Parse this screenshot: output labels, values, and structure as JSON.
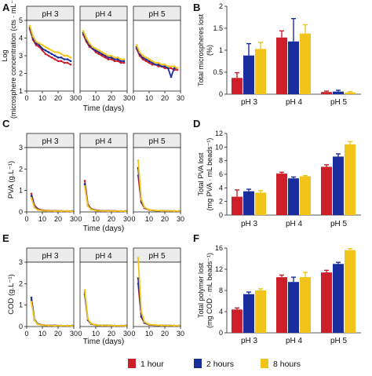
{
  "colors": {
    "1 hour": "#cc1f2a",
    "2 hours": "#1a2d9c",
    "8 hours": "#f2c41a"
  },
  "legend": {
    "items": [
      {
        "name": "1 hour",
        "color": "#cc1f2a"
      },
      {
        "name": "2 hours",
        "color": "#1a2d9c"
      },
      {
        "name": "8 hours",
        "color": "#f2c41a"
      }
    ],
    "placement": "bottom"
  },
  "chart_data": [
    {
      "panel": "A",
      "type": "line",
      "ylabel": "Log(microsphere concentration (cts · mL⁻¹))",
      "xlabel": "Time (days)",
      "facets": [
        "pH  3",
        "pH  4",
        "pH  5"
      ],
      "xlim": [
        0,
        30
      ],
      "ylim": [
        1,
        5
      ],
      "xticks": [
        0,
        10,
        20,
        30
      ],
      "yticks": [
        1,
        2,
        3,
        4,
        5
      ],
      "series_by_facet": [
        [
          {
            "name": "1 hour",
            "x": [
              2,
              4,
              6,
              8,
              10,
              12,
              14,
              16,
              18,
              20,
              22,
              24,
              26,
              28
            ],
            "y": [
              4.5,
              3.9,
              3.6,
              3.5,
              3.3,
              3.1,
              3.0,
              2.9,
              2.8,
              2.7,
              2.7,
              2.6,
              2.6,
              2.5
            ]
          },
          {
            "name": "2 hours",
            "x": [
              2,
              4,
              6,
              8,
              10,
              12,
              14,
              16,
              18,
              20,
              22,
              24,
              26,
              28
            ],
            "y": [
              4.6,
              4.0,
              3.7,
              3.6,
              3.4,
              3.3,
              3.2,
              3.1,
              3.0,
              2.9,
              2.9,
              2.8,
              2.8,
              2.7
            ]
          },
          {
            "name": "8 hours",
            "x": [
              2,
              4,
              6,
              8,
              10,
              12,
              14,
              16,
              18,
              20,
              22,
              24,
              26,
              28
            ],
            "y": [
              4.7,
              4.1,
              3.8,
              3.7,
              3.6,
              3.5,
              3.4,
              3.3,
              3.2,
              3.2,
              3.1,
              3.0,
              3.0,
              2.9
            ]
          }
        ],
        [
          {
            "name": "1 hour",
            "x": [
              2,
              4,
              6,
              8,
              10,
              12,
              14,
              16,
              18,
              20,
              22,
              24,
              26,
              28
            ],
            "y": [
              4.2,
              3.8,
              3.5,
              3.4,
              3.2,
              3.1,
              3.0,
              2.9,
              2.8,
              2.8,
              2.7,
              2.7,
              2.6,
              2.6
            ]
          },
          {
            "name": "2 hours",
            "x": [
              2,
              4,
              6,
              8,
              10,
              12,
              14,
              16,
              18,
              20,
              22,
              24,
              26,
              28
            ],
            "y": [
              4.3,
              3.9,
              3.6,
              3.4,
              3.3,
              3.2,
              3.1,
              3.0,
              2.9,
              2.9,
              2.8,
              2.8,
              2.7,
              2.7
            ]
          },
          {
            "name": "8 hours",
            "x": [
              2,
              4,
              6,
              8,
              10,
              12,
              14,
              16,
              18,
              20,
              22,
              24,
              26,
              28
            ],
            "y": [
              4.4,
              4.0,
              3.7,
              3.5,
              3.4,
              3.3,
              3.2,
              3.1,
              3.0,
              3.0,
              2.9,
              2.9,
              2.8,
              2.8
            ]
          }
        ],
        [
          {
            "name": "1 hour",
            "x": [
              2,
              4,
              6,
              8,
              10,
              12,
              14,
              16,
              18,
              20,
              22,
              24,
              26,
              28
            ],
            "y": [
              3.4,
              3.0,
              2.8,
              2.7,
              2.6,
              2.5,
              2.5,
              2.4,
              2.4,
              2.3,
              2.3,
              2.3,
              2.2,
              2.2
            ]
          },
          {
            "name": "2 hours",
            "x": [
              2,
              4,
              6,
              8,
              10,
              12,
              14,
              16,
              18,
              20,
              22,
              24,
              26,
              28
            ],
            "y": [
              3.5,
              3.1,
              2.9,
              2.8,
              2.7,
              2.6,
              2.5,
              2.5,
              2.4,
              2.4,
              2.3,
              1.8,
              2.3,
              2.3
            ]
          },
          {
            "name": "8 hours",
            "x": [
              2,
              4,
              6,
              8,
              10,
              12,
              14,
              16,
              18,
              20,
              22,
              24,
              26,
              28
            ],
            "y": [
              3.6,
              3.2,
              3.0,
              2.9,
              2.8,
              2.7,
              2.6,
              2.6,
              2.5,
              2.5,
              2.4,
              2.4,
              2.4,
              2.3
            ]
          }
        ]
      ]
    },
    {
      "panel": "B",
      "type": "bar",
      "ylabel": "Total microspheres lost (%)",
      "categories": [
        "pH  3",
        "pH  4",
        "pH  5"
      ],
      "ylim": [
        0,
        2
      ],
      "yticks": [
        0,
        0.5,
        1,
        1.5,
        2
      ],
      "series": [
        {
          "name": "1 hour",
          "values": [
            0.37,
            1.29,
            0.05
          ],
          "errors": [
            0.12,
            0.15,
            0.02
          ]
        },
        {
          "name": "2 hours",
          "values": [
            0.88,
            1.2,
            0.06
          ],
          "errors": [
            0.27,
            0.52,
            0.03
          ]
        },
        {
          "name": "8 hours",
          "values": [
            1.03,
            1.38,
            0.04
          ],
          "errors": [
            0.15,
            0.2,
            0.02
          ]
        }
      ]
    },
    {
      "panel": "C",
      "type": "line",
      "ylabel": "PVA (g.L⁻¹)",
      "xlabel": "Time (days)",
      "facets": [
        "pH  3",
        "pH  4",
        "pH  5"
      ],
      "xlim": [
        0,
        30
      ],
      "ylim": [
        0,
        3
      ],
      "xticks": [
        0,
        10,
        20,
        30
      ],
      "yticks": [
        0,
        1,
        2,
        3
      ],
      "series_by_facet": [
        [
          {
            "name": "1 hour",
            "x": [
              3,
              5,
              7,
              10,
              14,
              18,
              22,
              26,
              29
            ],
            "y": [
              0.85,
              0.3,
              0.15,
              0.08,
              0.06,
              0.05,
              0.05,
              0.04,
              0.04
            ]
          },
          {
            "name": "2 hours",
            "x": [
              3,
              5,
              7,
              10,
              14,
              18,
              22,
              26,
              29
            ],
            "y": [
              0.75,
              0.25,
              0.12,
              0.07,
              0.05,
              0.05,
              0.04,
              0.04,
              0.04
            ]
          },
          {
            "name": "8 hours",
            "x": [
              3,
              5,
              7,
              10,
              14,
              18,
              22,
              26,
              29
            ],
            "y": [
              0.65,
              0.2,
              0.1,
              0.06,
              0.05,
              0.04,
              0.04,
              0.04,
              0.03
            ]
          }
        ],
        [
          {
            "name": "1 hour",
            "x": [
              3,
              5,
              7,
              10,
              14,
              18,
              22,
              26,
              29
            ],
            "y": [
              1.45,
              0.35,
              0.15,
              0.08,
              0.06,
              0.05,
              0.05,
              0.04,
              0.04
            ]
          },
          {
            "name": "2 hours",
            "x": [
              3,
              5,
              7,
              10,
              14,
              18,
              22,
              26,
              29
            ],
            "y": [
              1.3,
              0.3,
              0.13,
              0.07,
              0.05,
              0.05,
              0.04,
              0.04,
              0.04
            ]
          },
          {
            "name": "8 hours",
            "x": [
              3,
              5,
              7,
              10,
              14,
              18,
              22,
              26,
              29
            ],
            "y": [
              1.2,
              0.27,
              0.12,
              0.06,
              0.05,
              0.04,
              0.04,
              0.04,
              0.03
            ]
          }
        ],
        [
          {
            "name": "1 hour",
            "x": [
              3,
              5,
              7,
              10,
              14,
              18,
              22,
              26,
              29
            ],
            "y": [
              1.7,
              0.45,
              0.18,
              0.09,
              0.06,
              0.05,
              0.05,
              0.04,
              0.04
            ]
          },
          {
            "name": "2 hours",
            "x": [
              3,
              5,
              7,
              10,
              14,
              18,
              22,
              26,
              29
            ],
            "y": [
              2.05,
              0.5,
              0.2,
              0.1,
              0.06,
              0.05,
              0.05,
              0.04,
              0.04
            ]
          },
          {
            "name": "8 hours",
            "x": [
              3,
              5,
              7,
              10,
              14,
              18,
              22,
              26,
              29
            ],
            "y": [
              2.4,
              0.6,
              0.22,
              0.1,
              0.07,
              0.05,
              0.05,
              0.04,
              0.04
            ]
          }
        ]
      ]
    },
    {
      "panel": "D",
      "type": "bar",
      "ylabel": "Total PVA lost (mg PVA · mL beads⁻¹)",
      "categories": [
        "pH  3",
        "pH  4",
        "pH  5"
      ],
      "ylim": [
        0,
        12
      ],
      "yticks": [
        0,
        2,
        4,
        6,
        8,
        10,
        12
      ],
      "series": [
        {
          "name": "1 hour",
          "values": [
            2.7,
            6.1,
            7.1
          ],
          "errors": [
            1.0,
            0.2,
            0.3
          ]
        },
        {
          "name": "2 hours",
          "values": [
            3.5,
            5.4,
            8.6
          ],
          "errors": [
            0.3,
            0.2,
            0.4
          ]
        },
        {
          "name": "8 hours",
          "values": [
            3.3,
            5.7,
            10.4
          ],
          "errors": [
            0.3,
            0.1,
            0.4
          ]
        }
      ]
    },
    {
      "panel": "E",
      "type": "line",
      "ylabel": "COD (g.L⁻¹)",
      "xlabel": "Time (days)",
      "facets": [
        "pH  3",
        "pH  4",
        "pH  5"
      ],
      "xlim": [
        0,
        30
      ],
      "ylim": [
        0,
        3
      ],
      "xticks": [
        0,
        10,
        20,
        30
      ],
      "yticks": [
        0,
        1,
        2,
        3
      ],
      "series_by_facet": [
        [
          {
            "name": "1 hour",
            "x": [
              3,
              5,
              7,
              10,
              14,
              18,
              22,
              26,
              29
            ],
            "y": [
              1.25,
              0.3,
              0.12,
              0.07,
              0.05,
              0.05,
              0.04,
              0.04,
              0.04
            ]
          },
          {
            "name": "2 hours",
            "x": [
              3,
              5,
              7,
              10,
              14,
              18,
              22,
              26,
              29
            ],
            "y": [
              1.35,
              0.32,
              0.13,
              0.07,
              0.05,
              0.05,
              0.04,
              0.04,
              0.04
            ]
          },
          {
            "name": "8 hours",
            "x": [
              3,
              5,
              7,
              10,
              14,
              18,
              22,
              26,
              29
            ],
            "y": [
              1.15,
              0.28,
              0.11,
              0.06,
              0.05,
              0.04,
              0.04,
              0.04,
              0.03
            ]
          }
        ],
        [
          {
            "name": "1 hour",
            "x": [
              3,
              5,
              7,
              10,
              14,
              18,
              22,
              26,
              29
            ],
            "y": [
              1.6,
              0.33,
              0.13,
              0.07,
              0.05,
              0.05,
              0.04,
              0.04,
              0.04
            ]
          },
          {
            "name": "2 hours",
            "x": [
              3,
              5,
              7,
              10,
              14,
              18,
              22,
              26,
              29
            ],
            "y": [
              1.5,
              0.3,
              0.12,
              0.07,
              0.05,
              0.05,
              0.04,
              0.04,
              0.04
            ]
          },
          {
            "name": "8 hours",
            "x": [
              3,
              5,
              7,
              10,
              14,
              18,
              22,
              26,
              29
            ],
            "y": [
              1.7,
              0.35,
              0.14,
              0.07,
              0.05,
              0.05,
              0.04,
              0.04,
              0.03
            ]
          }
        ],
        [
          {
            "name": "1 hour",
            "x": [
              3,
              5,
              7,
              10,
              14,
              18,
              22,
              26,
              29
            ],
            "y": [
              2.0,
              0.45,
              0.17,
              0.08,
              0.06,
              0.05,
              0.05,
              0.04,
              0.04
            ]
          },
          {
            "name": "2 hours",
            "x": [
              3,
              5,
              7,
              10,
              14,
              18,
              22,
              26,
              29
            ],
            "y": [
              2.25,
              0.5,
              0.18,
              0.09,
              0.06,
              0.05,
              0.05,
              0.04,
              0.04
            ]
          },
          {
            "name": "8 hours",
            "x": [
              3,
              5,
              7,
              10,
              14,
              18,
              22,
              26,
              29
            ],
            "y": [
              3.2,
              0.7,
              0.22,
              0.1,
              0.07,
              0.05,
              0.05,
              0.04,
              0.04
            ]
          }
        ]
      ]
    },
    {
      "panel": "F",
      "type": "bar",
      "ylabel": "Total polymer lost (mg COD · mL beads⁻¹)",
      "categories": [
        "pH  3",
        "pH  4",
        "pH  5"
      ],
      "ylim": [
        0,
        16
      ],
      "yticks": [
        0,
        4,
        8,
        12,
        16
      ],
      "series": [
        {
          "name": "1 hour",
          "values": [
            4.4,
            10.5,
            11.4
          ],
          "errors": [
            0.3,
            0.4,
            0.4
          ]
        },
        {
          "name": "2 hours",
          "values": [
            7.3,
            9.6,
            13.0
          ],
          "errors": [
            0.4,
            0.9,
            0.3
          ]
        },
        {
          "name": "8 hours",
          "values": [
            8.0,
            10.5,
            15.6
          ],
          "errors": [
            0.3,
            0.9,
            0.3
          ]
        }
      ]
    }
  ]
}
